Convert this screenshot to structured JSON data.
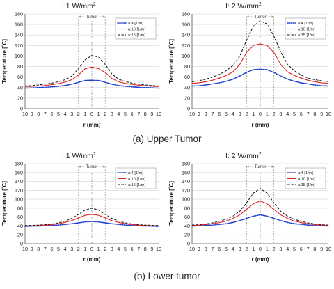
{
  "captions": [
    "(a) Upper Tumor",
    "(b) Lower tumor"
  ],
  "colors": {
    "blue": "#1f3fd0",
    "red": "#e02020",
    "black": "#111111",
    "grid": "#d4d4d4",
    "dash_marker": "#8a8a8a"
  },
  "chart_data": [
    {
      "type": "line",
      "title_main": "I: 1 W/mm",
      "title_sup": "2",
      "xlabel": "r (mm)",
      "ylabel": "Temperature [˚C]",
      "x_tick_labels": [
        "10",
        "9",
        "8",
        "7",
        "6",
        "5",
        "4",
        "3",
        "2",
        "1",
        "0",
        "1",
        "2",
        "3",
        "4",
        "5",
        "6",
        "7",
        "8",
        "9",
        "10"
      ],
      "xlim": [
        -10,
        10
      ],
      "ylim": [
        0,
        180
      ],
      "y_ticks": [
        0,
        20,
        40,
        60,
        80,
        100,
        120,
        140,
        160,
        180
      ],
      "grid": true,
      "tumor_label": "Tumor",
      "tumor_bounds": [
        -2,
        2
      ],
      "legend_entries": [
        "a:4 [1/m]",
        "a:10 [1/m]",
        "a:15 [1/m]"
      ],
      "x": [
        -10,
        -9,
        -8,
        -7,
        -6,
        -5,
        -4,
        -3,
        -2,
        -1,
        0,
        1,
        2,
        3,
        4,
        5,
        6,
        7,
        8,
        9,
        10
      ],
      "series": [
        {
          "name": "a:4 [1/m]",
          "style": "dotted",
          "values": [
            39,
            39.5,
            40,
            40.5,
            41.5,
            42.5,
            44,
            46.5,
            50,
            53.5,
            54,
            53.5,
            50,
            46.5,
            44,
            42.5,
            41.5,
            40.5,
            40,
            39.5,
            39
          ]
        },
        {
          "name": "a:10 [1/m]",
          "style": "solid",
          "values": [
            42,
            42.5,
            43,
            44,
            45.5,
            47.5,
            50.5,
            55,
            64,
            76,
            79,
            76,
            69,
            57.5,
            51,
            48,
            46,
            44.5,
            43.5,
            42.5,
            42
          ]
        },
        {
          "name": "a:15 [1/m]",
          "style": "dashed",
          "values": [
            43,
            44,
            45,
            46.5,
            48.5,
            51,
            55,
            62,
            76,
            93,
            101,
            98,
            84,
            66,
            56,
            51.5,
            48.5,
            46.5,
            45,
            44,
            43
          ]
        }
      ]
    },
    {
      "type": "line",
      "title_main": "I: 2 W/mm",
      "title_sup": "2",
      "xlabel": "r (mm)",
      "ylabel": "Temperature [˚C]",
      "x_tick_labels": [
        "10",
        "9",
        "8",
        "7",
        "6",
        "5",
        "4",
        "3",
        "2",
        "1",
        "0",
        "1",
        "2",
        "3",
        "4",
        "5",
        "6",
        "7",
        "8",
        "9",
        "10"
      ],
      "xlim": [
        -10,
        10
      ],
      "ylim": [
        0,
        180
      ],
      "y_ticks": [
        0,
        20,
        40,
        60,
        80,
        100,
        120,
        140,
        160,
        180
      ],
      "grid": true,
      "tumor_label": "Tumor",
      "tumor_bounds": [
        -2,
        2
      ],
      "legend_entries": [
        "a:4 [1/m]",
        "a:10 [1/m]",
        "a:15 [1/m]"
      ],
      "x": [
        -10,
        -9,
        -8,
        -7,
        -6,
        -5,
        -4,
        -3,
        -2,
        -1,
        0,
        1,
        2,
        3,
        4,
        5,
        6,
        7,
        8,
        9,
        10
      ],
      "series": [
        {
          "name": "a:4 [1/m]",
          "style": "dotted",
          "values": [
            43,
            43.5,
            45,
            47,
            49,
            52,
            56,
            62,
            69,
            74,
            75,
            74,
            69,
            62,
            56,
            52,
            49,
            47,
            45,
            43.5,
            43
          ]
        },
        {
          "name": "a:10 [1/m]",
          "style": "solid",
          "values": [
            48,
            49,
            51,
            54,
            58,
            63,
            70,
            84,
            107,
            120,
            123,
            120,
            107,
            84,
            70,
            63,
            58,
            54,
            51,
            49,
            48
          ]
        },
        {
          "name": "a:15 [1/m]",
          "style": "dashed",
          "values": [
            51,
            53,
            56,
            60,
            65,
            72,
            82,
            100,
            130,
            157,
            167,
            161,
            138,
            108,
            84,
            72,
            64,
            58,
            55,
            53,
            51
          ]
        }
      ]
    },
    {
      "type": "line",
      "title_main": "I: 1 W/mm",
      "title_sup": "2",
      "xlabel": "r (mm)",
      "ylabel": "Temperature [˚C]",
      "x_tick_labels": [
        "10",
        "9",
        "8",
        "7",
        "6",
        "5",
        "4",
        "3",
        "2",
        "1",
        "0",
        "1",
        "2",
        "3",
        "4",
        "5",
        "6",
        "7",
        "8",
        "9",
        "10"
      ],
      "xlim": [
        -10,
        10
      ],
      "ylim": [
        0,
        180
      ],
      "y_ticks": [
        0,
        20,
        40,
        60,
        80,
        100,
        120,
        140,
        160,
        180
      ],
      "grid": true,
      "tumor_label": "Tumor",
      "tumor_bounds": [
        -2,
        2
      ],
      "legend_entries": [
        "a:4 [1/m]",
        "a:10 [1/m]",
        "a:15 [1/m]"
      ],
      "x": [
        -10,
        -9,
        -8,
        -7,
        -6,
        -5,
        -4,
        -3,
        -2,
        -1,
        0,
        1,
        2,
        3,
        4,
        5,
        6,
        7,
        8,
        9,
        10
      ],
      "series": [
        {
          "name": "a:4 [1/m]",
          "style": "dotted",
          "values": [
            39,
            39.5,
            40,
            40.5,
            41,
            42,
            43.5,
            45,
            47,
            49,
            50,
            49,
            47,
            45,
            43.5,
            42,
            41,
            40.5,
            40,
            39.5,
            39
          ]
        },
        {
          "name": "a:10 [1/m]",
          "style": "solid",
          "values": [
            40,
            40.5,
            41,
            42,
            43,
            45,
            48,
            52,
            58,
            64,
            66,
            64,
            58,
            52,
            48,
            45,
            43,
            42,
            41,
            40.5,
            40
          ]
        },
        {
          "name": "a:15 [1/m]",
          "style": "dashed",
          "values": [
            41,
            41.5,
            42,
            43,
            44.5,
            47,
            51,
            57,
            66,
            76,
            80,
            76,
            66,
            57,
            51,
            47,
            44.5,
            43,
            42,
            41.5,
            41
          ]
        }
      ]
    },
    {
      "type": "line",
      "title_main": "I: 2 W/mm",
      "title_sup": "2",
      "xlabel": "r (mm)",
      "ylabel": "Temperature [˚C]",
      "x_tick_labels": [
        "10",
        "9",
        "8",
        "7",
        "6",
        "5",
        "4",
        "3",
        "2",
        "1",
        "0",
        "1",
        "2",
        "3",
        "4",
        "5",
        "6",
        "7",
        "8",
        "9",
        "10"
      ],
      "xlim": [
        -10,
        10
      ],
      "ylim": [
        0,
        180
      ],
      "y_ticks": [
        0,
        20,
        40,
        60,
        80,
        100,
        120,
        140,
        160,
        180
      ],
      "grid": true,
      "tumor_label": "Tumor",
      "tumor_bounds": [
        -2,
        2
      ],
      "legend_entries": [
        "a:4 [1/m]",
        "a:10 [1/m]",
        "a:15 [1/m]"
      ],
      "x": [
        -10,
        -9,
        -8,
        -7,
        -6,
        -5,
        -4,
        -3,
        -2,
        -1,
        0,
        1,
        2,
        3,
        4,
        5,
        6,
        7,
        8,
        9,
        10
      ],
      "series": [
        {
          "name": "a:4 [1/m]",
          "style": "dotted",
          "values": [
            40,
            40.5,
            41,
            42,
            43.5,
            45,
            48,
            52,
            57,
            62,
            65,
            62,
            57,
            52,
            48,
            45,
            43.5,
            42,
            41,
            40.5,
            40
          ]
        },
        {
          "name": "a:10 [1/m]",
          "style": "solid",
          "values": [
            41,
            42,
            43,
            45,
            47.5,
            51,
            57,
            65,
            77,
            90,
            96,
            90,
            77,
            65,
            57,
            51,
            47.5,
            45,
            43,
            42,
            41
          ]
        },
        {
          "name": "a:15 [1/m]",
          "style": "dashed",
          "values": [
            42,
            43,
            44.5,
            47,
            50.5,
            55,
            62,
            73,
            92,
            114,
            124,
            114,
            92,
            73,
            62,
            55,
            50.5,
            47,
            44.5,
            43,
            42
          ]
        }
      ]
    }
  ]
}
